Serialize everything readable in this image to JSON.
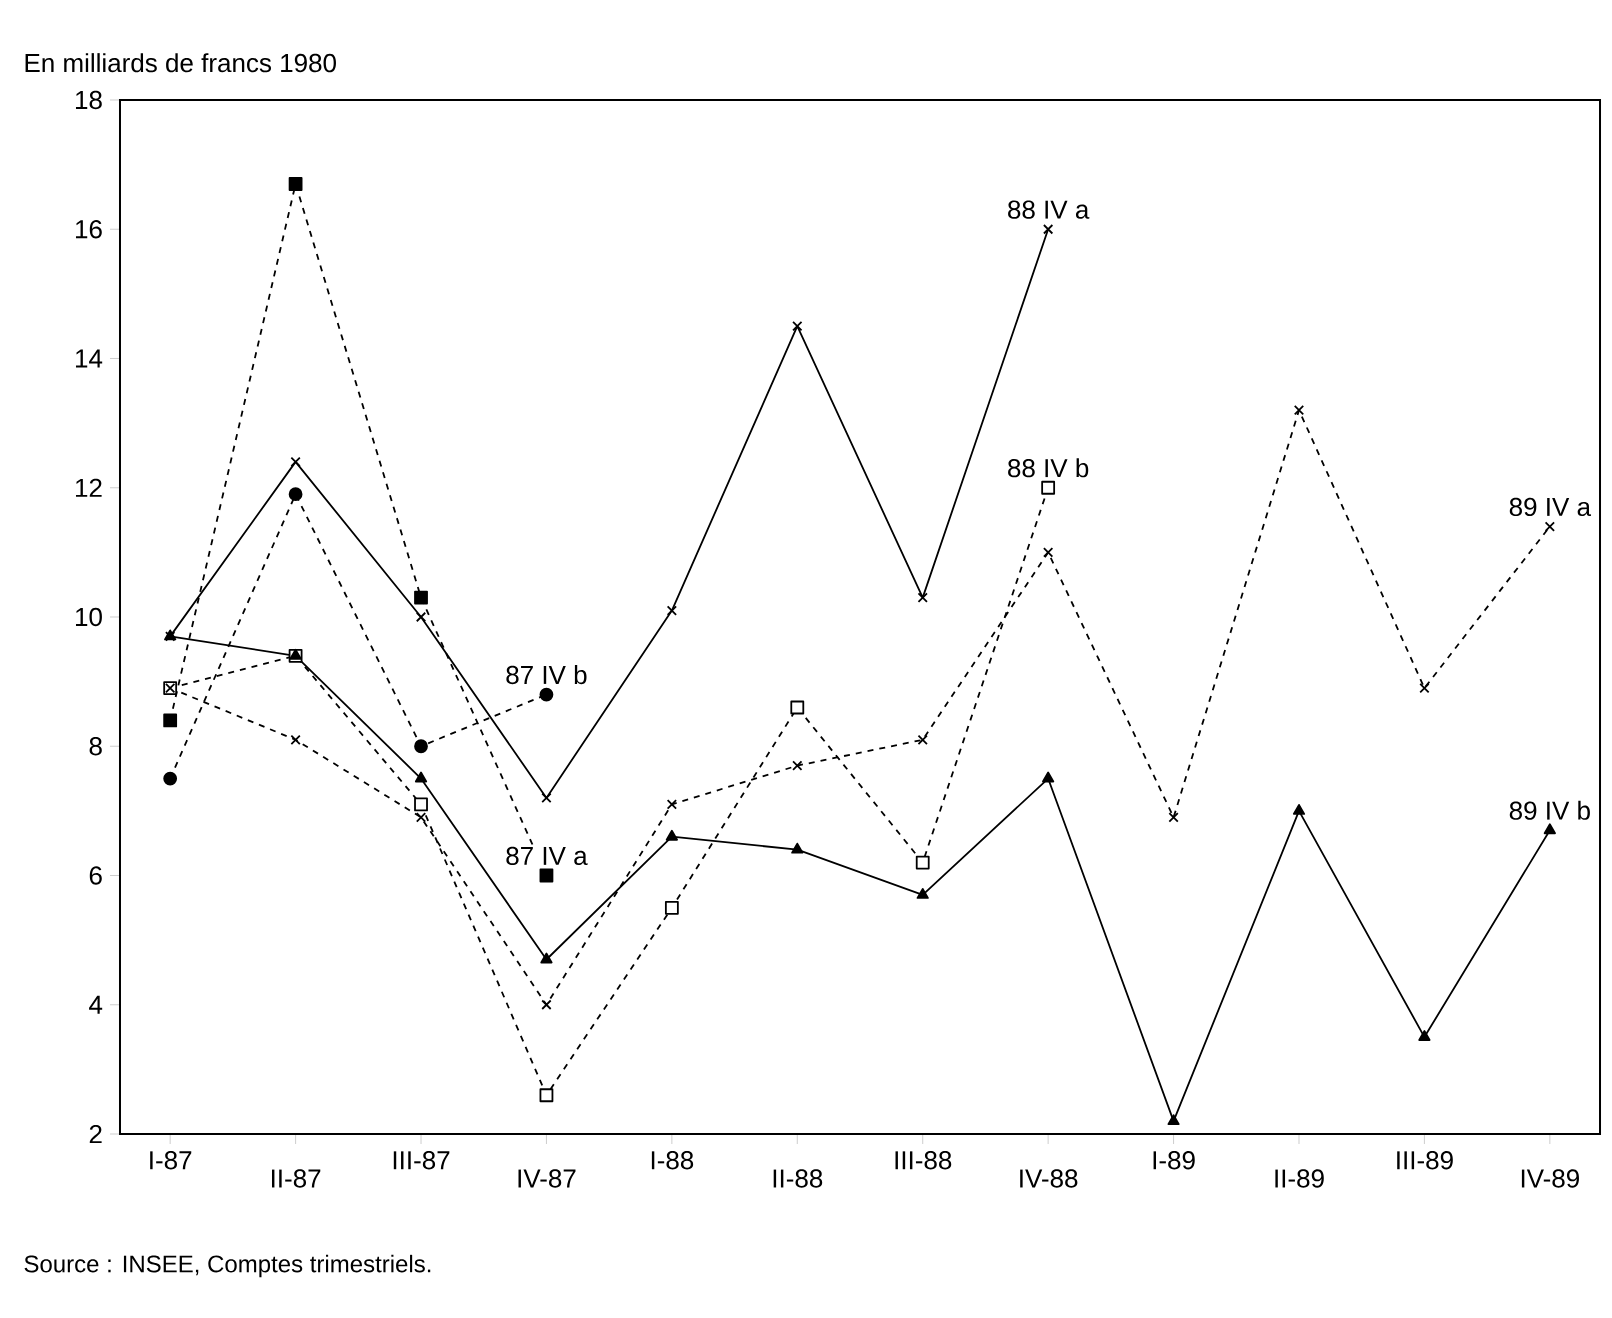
{
  "chart_data": {
    "type": "line",
    "ylabel": "En milliards de francs 1980",
    "categories": [
      "I-87",
      "II-87",
      "III-87",
      "IV-87",
      "I-88",
      "II-88",
      "III-88",
      "IV-88",
      "I-89",
      "II-89",
      "III-89",
      "IV-89"
    ],
    "ylim": [
      2,
      18
    ],
    "yticks": [
      2,
      4,
      6,
      8,
      10,
      12,
      14,
      16,
      18
    ],
    "grid": false,
    "legend": false,
    "series": [
      {
        "name": "87 IV a",
        "color": "#000000",
        "marker": "square",
        "line_style": "dashed",
        "values": [
          8.4,
          16.7,
          10.3,
          6.0,
          null,
          null,
          null,
          null,
          null,
          null,
          null,
          null
        ]
      },
      {
        "name": "87 IV b",
        "color": "#000000",
        "marker": "circle",
        "line_style": "dashed",
        "values": [
          7.5,
          11.9,
          8.0,
          8.8,
          null,
          null,
          null,
          null,
          null,
          null,
          null,
          null
        ]
      },
      {
        "name": "88 IV a",
        "color": "#000000",
        "marker": "cross",
        "line_style": "solid",
        "values": [
          9.7,
          12.4,
          10.0,
          7.2,
          10.1,
          14.5,
          10.3,
          16.0,
          null,
          null,
          null,
          null
        ]
      },
      {
        "name": "88 IV b",
        "color": "#000000",
        "marker": "square",
        "line_style": "dashed",
        "values": [
          8.9,
          9.4,
          7.1,
          2.6,
          5.5,
          8.6,
          6.2,
          12.0,
          null,
          null,
          null,
          null
        ]
      },
      {
        "name": "89 IV a",
        "color": "#000000",
        "marker": "cross",
        "line_style": "dashed",
        "values": [
          8.9,
          8.1,
          6.9,
          4.0,
          7.1,
          7.7,
          8.1,
          11.0,
          6.9,
          13.2,
          8.9,
          11.4
        ]
      },
      {
        "name": "89 IV b",
        "color": "#000000",
        "marker": "triangle",
        "line_style": "solid",
        "values": [
          9.7,
          9.4,
          7.5,
          4.7,
          6.6,
          6.4,
          5.7,
          7.5,
          2.2,
          7.0,
          3.5,
          6.7
        ]
      }
    ],
    "annotations": [
      "Source : INSEE, Comptes trimestriels."
    ]
  }
}
